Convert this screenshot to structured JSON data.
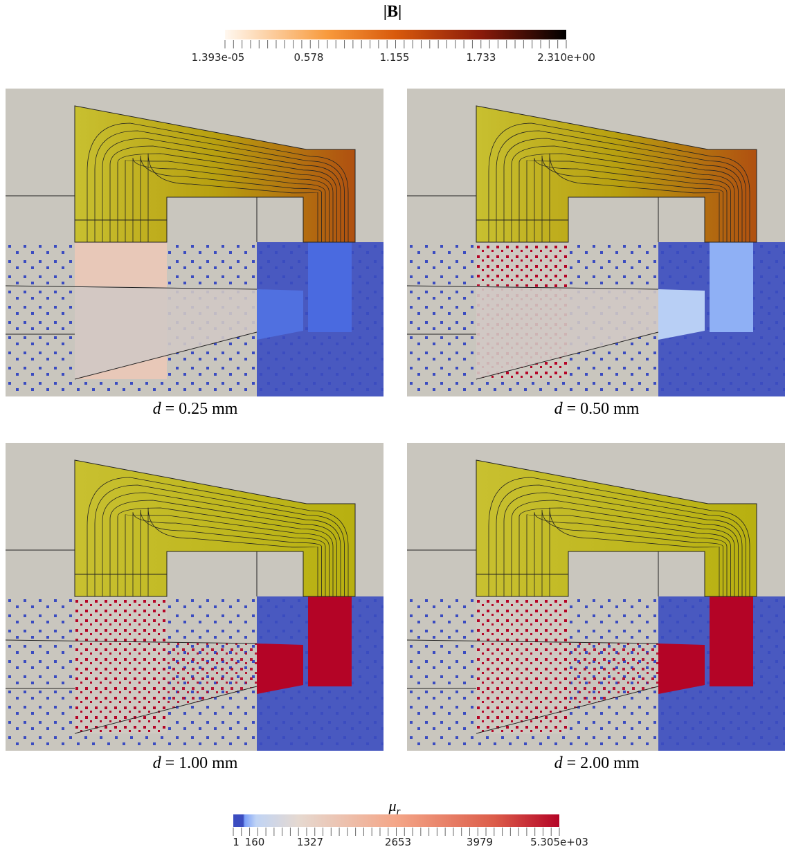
{
  "colorbar_B": {
    "title": "|B|",
    "ticks": [
      "1.393e-05",
      "0.578",
      "1.155",
      "1.733",
      "2.310e+00"
    ]
  },
  "panels": [
    {
      "variable": "d",
      "text": "= 0.25 mm"
    },
    {
      "variable": "d",
      "text": "= 0.50 mm"
    },
    {
      "variable": "d",
      "text": "= 1.00 mm"
    },
    {
      "variable": "d",
      "text": "= 2.00 mm"
    }
  ],
  "colorbar_mu": {
    "symbol": "μ",
    "subscript": "r",
    "ticks": [
      "1",
      "160",
      "1327",
      "2653",
      "3979",
      "5.305e+03"
    ]
  }
}
